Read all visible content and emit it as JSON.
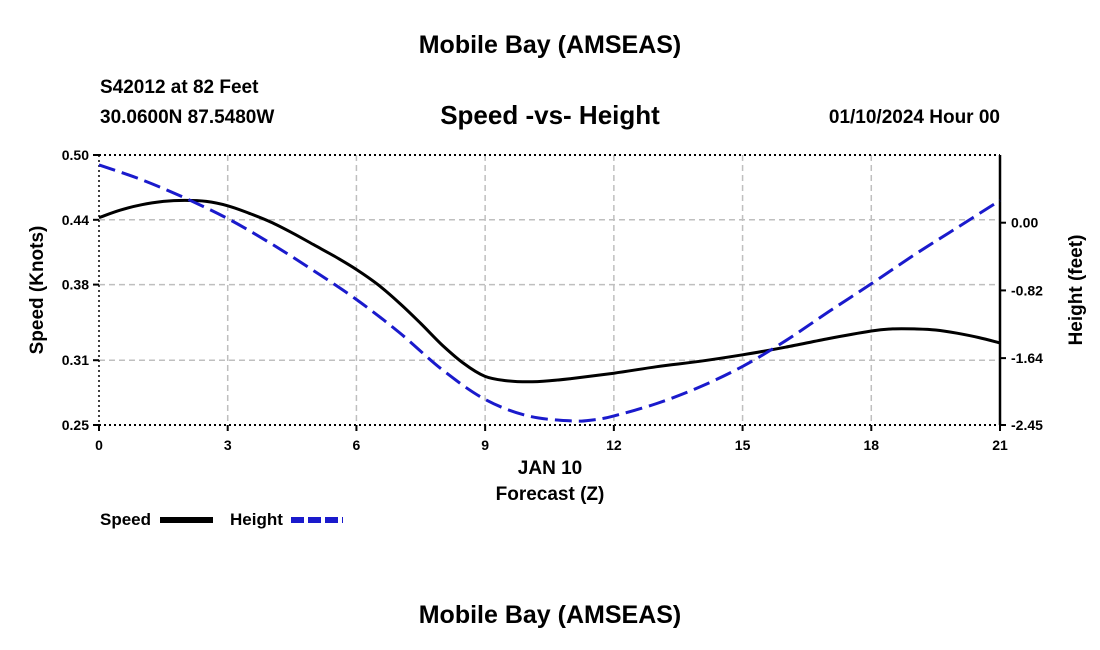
{
  "header": {
    "title": "Mobile Bay (AMSEAS)",
    "station": "S42012 at 82 Feet",
    "coords": "30.0600N  87.5480W",
    "subtitle": "Speed -vs- Height",
    "datetime": "01/10/2024 Hour 00"
  },
  "footer": {
    "title": "Mobile Bay (AMSEAS)"
  },
  "colors": {
    "speed": "#000000",
    "height": "#1a1acc",
    "grid": "#bfbfbf"
  },
  "chart_data": {
    "type": "line",
    "title": "Speed -vs- Height",
    "xlabel": "Forecast (Z)",
    "x_date_label": "JAN 10",
    "ylabel_left": "Speed (Knots)",
    "ylabel_right": "Height (feet)",
    "xlim": [
      0,
      21
    ],
    "ylim_left": [
      0.25,
      0.5
    ],
    "ylim_right": [
      -2.45,
      0.82
    ],
    "x_ticks": [
      0,
      3,
      6,
      9,
      12,
      15,
      18,
      21
    ],
    "x_tick_labels": [
      "0",
      "3",
      "6",
      "9",
      "12",
      "15",
      "18",
      "21"
    ],
    "y_left_ticks": [
      0.5,
      0.44,
      0.38,
      0.31,
      0.25
    ],
    "y_left_tick_labels": [
      "0.50",
      "0.44",
      "0.38",
      "0.31",
      "0.25"
    ],
    "y_right_ticks": [
      0.0,
      -0.82,
      -1.64,
      -2.45
    ],
    "y_right_tick_labels": [
      "0.00",
      "-0.82",
      "-1.64",
      "-2.45"
    ],
    "grid": true,
    "legend": "bottom-left",
    "series": [
      {
        "name": "Speed",
        "axis": "left",
        "style": "solid",
        "x": [
          0,
          0.5,
          1,
          1.5,
          2,
          2.5,
          3,
          3.5,
          4,
          4.5,
          5,
          5.5,
          6,
          6.5,
          7,
          7.5,
          8,
          8.5,
          9,
          9.5,
          10,
          10.5,
          11,
          12,
          13,
          14,
          15,
          16,
          17,
          18,
          18.5,
          19,
          19.5,
          20,
          20.5,
          21
        ],
        "values": [
          0.442,
          0.449,
          0.454,
          0.457,
          0.458,
          0.457,
          0.453,
          0.446,
          0.438,
          0.428,
          0.417,
          0.406,
          0.394,
          0.38,
          0.363,
          0.344,
          0.324,
          0.307,
          0.295,
          0.291,
          0.29,
          0.291,
          0.293,
          0.298,
          0.304,
          0.309,
          0.315,
          0.322,
          0.33,
          0.337,
          0.339,
          0.339,
          0.338,
          0.335,
          0.331,
          0.326
        ]
      },
      {
        "name": "Height",
        "axis": "right",
        "style": "dashed",
        "x": [
          0,
          1,
          2,
          3,
          4,
          5,
          6,
          7,
          8,
          9,
          10,
          11,
          11.5,
          12,
          13,
          14,
          15,
          16,
          17,
          18,
          19,
          20,
          21
        ],
        "values": [
          0.7,
          0.52,
          0.3,
          0.05,
          -0.25,
          -0.58,
          -0.93,
          -1.33,
          -1.78,
          -2.14,
          -2.34,
          -2.4,
          -2.39,
          -2.34,
          -2.19,
          -1.99,
          -1.74,
          -1.43,
          -1.08,
          -0.74,
          -0.39,
          -0.06,
          0.27
        ]
      }
    ]
  }
}
